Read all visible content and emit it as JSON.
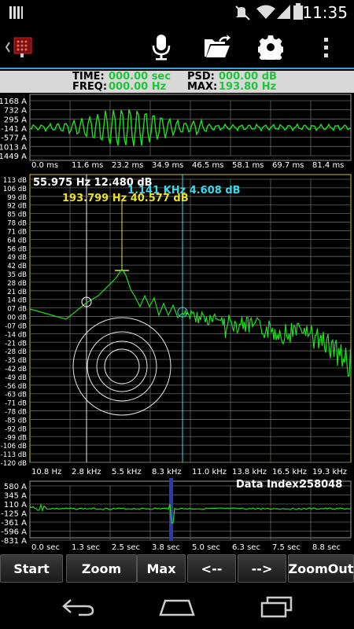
{
  "status_bar": {
    "time": "11:35"
  },
  "readout": {
    "time_label": "TIME:",
    "time_value": "000.00 sec",
    "freq_label": "FREQ:",
    "freq_value": "000.00 Hz",
    "psd_label": "PSD:",
    "psd_value": "000.00 dB",
    "max_label": "MAX:",
    "max_value": "193.80 Hz"
  },
  "waveform": {
    "y_ticks": [
      "1168 A",
      "732 A",
      "295 A",
      "-141 A",
      "-577 A",
      "-1013 A",
      "-1449 A"
    ],
    "x_ticks": [
      "0.0 ms",
      "11.6 ms",
      "23.2 ms",
      "34.9 ms",
      "46.5 ms",
      "58.1 ms",
      "69.7 ms",
      "81.4 ms"
    ]
  },
  "spectrum": {
    "y_ticks": [
      "113 dB",
      "106 dB",
      "99 dB",
      "92 dB",
      "85 dB",
      "78 dB",
      "71 dB",
      "64 dB",
      "56 dB",
      "49 dB",
      "42 dB",
      "35 dB",
      "28 dB",
      "21 dB",
      "14 dB",
      "07 dB",
      "00 dB",
      "-07 dB",
      "-14 dB",
      "-21 dB",
      "-28 dB",
      "-35 dB",
      "-42 dB",
      "-49 dB",
      "-56 dB",
      "-63 dB",
      "-71 dB",
      "-78 dB",
      "-85 dB",
      "-92 dB",
      "-99 dB",
      "-106 dB",
      "-113 dB",
      "-120 dB"
    ],
    "x_ticks": [
      "10.8 Hz",
      "2.8 kHz",
      "5.5 kHz",
      "8.3 kHz",
      "11.0 kHz",
      "13.8 kHz",
      "16.5 kHz",
      "19.3 kHz"
    ],
    "cursor_label": "55.975 Hz  12.480 dB",
    "cyan_label": "1.141 KHz  4.608 dB",
    "peak_label": "193.799 Hz  40.577 dB"
  },
  "timeline": {
    "y_ticks": [
      "580 A",
      "345 A",
      "110 A",
      "-125 A",
      "-361 A",
      "-596 A",
      "-831 A"
    ],
    "x_ticks": [
      "0.0 sec",
      "1.3 sec",
      "2.5 sec",
      "3.8 sec",
      "5.0 sec",
      "6.3 sec",
      "7.5 sec",
      "8.8 sec"
    ],
    "data_index_label": "Data Index:",
    "data_index_value": "258048",
    "marker_fraction": 0.44
  },
  "buttons": {
    "start": "Start",
    "zoom": "Zoom",
    "max": "Max",
    "prev": "<--",
    "next": "-->",
    "zoomout": "ZoomOut"
  },
  "colors": {
    "trace": "#22dd22",
    "accent": "#3aa4d8",
    "peak": "#e8e02a",
    "cyan": "#3ad8e8",
    "marker": "#2a3aa8"
  }
}
